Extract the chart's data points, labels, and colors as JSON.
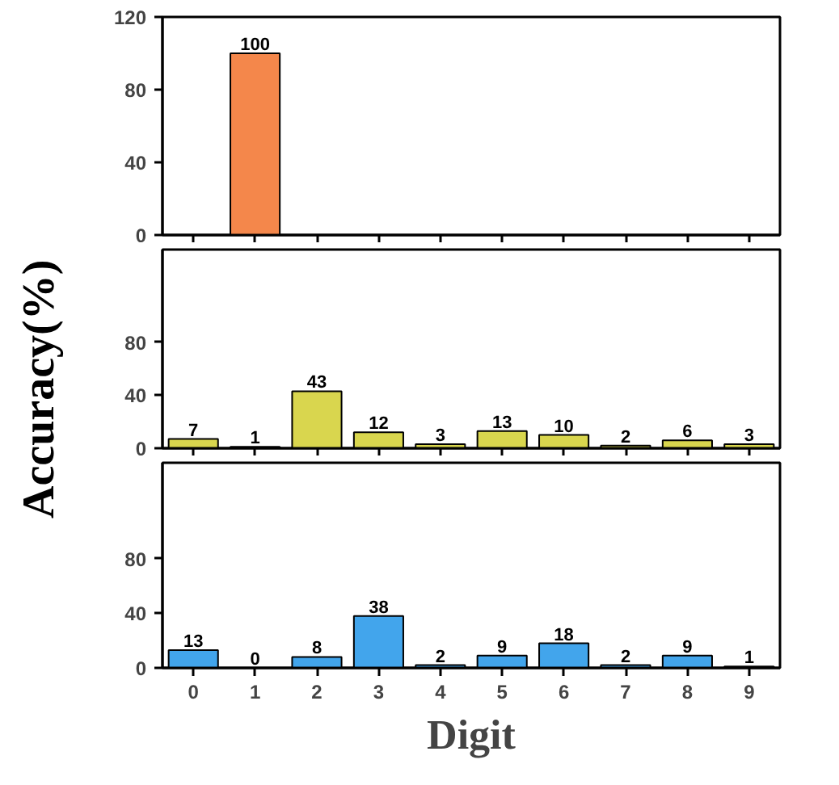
{
  "chart_data": [
    {
      "type": "bar",
      "categories": [
        "0",
        "1",
        "2",
        "3",
        "4",
        "5",
        "6",
        "7",
        "8",
        "9"
      ],
      "values": [
        null,
        100,
        null,
        null,
        null,
        null,
        null,
        null,
        null,
        null
      ],
      "color": "#f4874b",
      "ylim": [
        0,
        120
      ],
      "yticks": [
        0,
        40,
        80,
        120
      ],
      "data_labels": true,
      "tick_labels": "y",
      "grid": false
    },
    {
      "type": "bar",
      "categories": [
        "0",
        "1",
        "2",
        "3",
        "4",
        "5",
        "6",
        "7",
        "8",
        "9"
      ],
      "values": [
        7,
        1,
        43,
        12,
        3,
        13,
        10,
        2,
        6,
        3
      ],
      "color": "#d9d64e",
      "ylim": [
        0,
        150
      ],
      "yticks": [
        0,
        40,
        80
      ],
      "data_labels": true,
      "tick_labels": "y",
      "ylabel": "Accuracy(%)",
      "grid": false
    },
    {
      "type": "bar",
      "categories": [
        "0",
        "1",
        "2",
        "3",
        "4",
        "5",
        "6",
        "7",
        "8",
        "9"
      ],
      "values": [
        13,
        0,
        8,
        38,
        2,
        9,
        18,
        2,
        9,
        1
      ],
      "color": "#42a5ec",
      "ylim": [
        0,
        150
      ],
      "yticks": [
        0,
        40,
        80
      ],
      "data_labels": true,
      "xlabel": "Digit",
      "grid": false
    }
  ]
}
